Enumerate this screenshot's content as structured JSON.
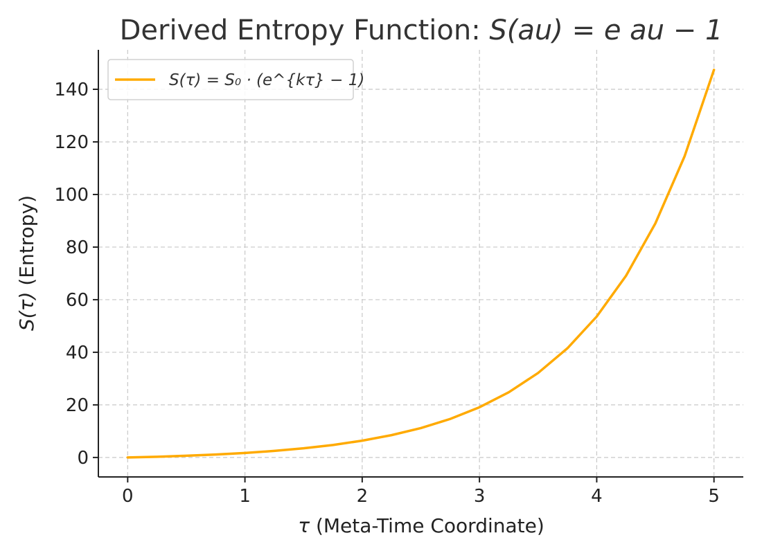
{
  "chart_data": {
    "type": "line",
    "title_plain": "Derived Entropy Function: ",
    "title_math": "S(au) = e au − 1",
    "xlabel_symbol": "τ",
    "xlabel_text": " (Meta-Time Coordinate)",
    "ylabel_math": "S(τ)",
    "ylabel_text": " (Entropy)",
    "xlim": [
      -0.25,
      5.25
    ],
    "ylim": [
      -7.4,
      155
    ],
    "xticks": [
      0,
      1,
      2,
      3,
      4,
      5
    ],
    "yticks": [
      0,
      20,
      40,
      60,
      80,
      100,
      120,
      140
    ],
    "grid": true,
    "legend_position": "top-left",
    "series": [
      {
        "name": "S(τ) = S₀ · (e^{kτ} − 1)",
        "color": "#FFAA00",
        "x": [
          0,
          0.25,
          0.5,
          0.75,
          1.0,
          1.25,
          1.5,
          1.75,
          2.0,
          2.25,
          2.5,
          2.75,
          3.0,
          3.25,
          3.5,
          3.75,
          4.0,
          4.25,
          4.5,
          4.75,
          5.0
        ],
        "y": [
          0,
          0.28,
          0.65,
          1.12,
          1.72,
          2.49,
          3.48,
          4.75,
          6.39,
          8.49,
          11.18,
          14.64,
          19.09,
          24.8,
          32.12,
          41.52,
          53.6,
          69.1,
          89.0,
          114.6,
          147.4
        ]
      }
    ]
  }
}
